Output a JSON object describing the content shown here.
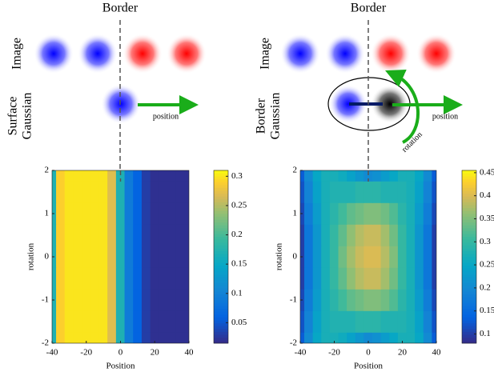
{
  "chart_data": [
    {
      "type": "heatmap",
      "title": "Border",
      "xlabel": "Position",
      "ylabel": "rotation",
      "row_labels": [
        "Image",
        [
          "Surface",
          "Gaussian"
        ]
      ],
      "arrow_label": "position",
      "xlim": [
        -40,
        40
      ],
      "ylim": [
        -2,
        2
      ],
      "xticks": [
        -40,
        -20,
        0,
        20,
        40
      ],
      "yticks": [
        -2,
        -1,
        0,
        1,
        2
      ],
      "clim": [
        0.015,
        0.31
      ],
      "cticks": [
        0.05,
        0.1,
        0.15,
        0.2,
        0.25,
        0.3
      ],
      "x": [
        -40,
        -35,
        -30,
        -25,
        -20,
        -15,
        -10,
        -5,
        0,
        5,
        10,
        15,
        20,
        25,
        30,
        35,
        40
      ],
      "y": [
        -2,
        -1.5,
        -1,
        -0.5,
        0,
        0.5,
        1,
        1.5,
        2
      ],
      "z": [
        [
          0.17,
          0.29,
          0.3,
          0.3,
          0.3,
          0.3,
          0.3,
          0.27,
          0.17,
          0.09,
          0.06,
          0.03,
          0.02,
          0.02,
          0.02,
          0.02,
          0.02
        ],
        [
          0.17,
          0.29,
          0.3,
          0.3,
          0.3,
          0.3,
          0.3,
          0.27,
          0.17,
          0.09,
          0.06,
          0.03,
          0.02,
          0.02,
          0.02,
          0.02,
          0.02
        ],
        [
          0.17,
          0.29,
          0.3,
          0.3,
          0.3,
          0.3,
          0.3,
          0.27,
          0.17,
          0.09,
          0.06,
          0.03,
          0.02,
          0.02,
          0.02,
          0.02,
          0.02
        ],
        [
          0.17,
          0.29,
          0.3,
          0.3,
          0.3,
          0.3,
          0.3,
          0.27,
          0.17,
          0.09,
          0.06,
          0.03,
          0.02,
          0.02,
          0.02,
          0.02,
          0.02
        ],
        [
          0.17,
          0.29,
          0.3,
          0.3,
          0.3,
          0.3,
          0.3,
          0.27,
          0.17,
          0.09,
          0.06,
          0.03,
          0.02,
          0.02,
          0.02,
          0.02,
          0.02
        ],
        [
          0.17,
          0.29,
          0.3,
          0.3,
          0.3,
          0.3,
          0.3,
          0.27,
          0.17,
          0.09,
          0.06,
          0.03,
          0.02,
          0.02,
          0.02,
          0.02,
          0.02
        ],
        [
          0.17,
          0.29,
          0.3,
          0.3,
          0.3,
          0.3,
          0.3,
          0.27,
          0.17,
          0.09,
          0.06,
          0.03,
          0.02,
          0.02,
          0.02,
          0.02,
          0.02
        ],
        [
          0.17,
          0.29,
          0.3,
          0.3,
          0.3,
          0.3,
          0.3,
          0.27,
          0.17,
          0.09,
          0.06,
          0.03,
          0.02,
          0.02,
          0.02,
          0.02,
          0.02
        ],
        [
          0.17,
          0.29,
          0.3,
          0.3,
          0.3,
          0.3,
          0.3,
          0.27,
          0.17,
          0.09,
          0.06,
          0.03,
          0.02,
          0.02,
          0.02,
          0.02,
          0.02
        ]
      ]
    },
    {
      "type": "heatmap",
      "title": "Border",
      "xlabel": "Position",
      "ylabel": "rotation",
      "row_labels": [
        "Image",
        [
          "Border",
          "Gaussian"
        ]
      ],
      "arrow_label": "position",
      "rotation_label": "rotation",
      "xlim": [
        -40,
        40
      ],
      "ylim": [
        -2,
        2
      ],
      "xticks": [
        -40,
        -20,
        0,
        20,
        40
      ],
      "yticks": [
        -2,
        -1,
        0,
        1,
        2
      ],
      "clim": [
        0.08,
        0.455
      ],
      "cticks": [
        0.1,
        0.15,
        0.2,
        0.25,
        0.3,
        0.35,
        0.4,
        0.45
      ],
      "x": [
        -40,
        -35,
        -30,
        -25,
        -20,
        -15,
        -10,
        -5,
        0,
        5,
        10,
        15,
        20,
        25,
        30,
        35,
        40
      ],
      "y": [
        -2,
        -1.5,
        -1,
        -0.5,
        0,
        0.5,
        1,
        1.5,
        2
      ],
      "z": [
        [
          0.13,
          0.2,
          0.25,
          0.27,
          0.27,
          0.26,
          0.24,
          0.22,
          0.2,
          0.21,
          0.23,
          0.25,
          0.27,
          0.27,
          0.25,
          0.2,
          0.13
        ],
        [
          0.12,
          0.19,
          0.24,
          0.27,
          0.28,
          0.28,
          0.28,
          0.29,
          0.29,
          0.29,
          0.28,
          0.28,
          0.28,
          0.27,
          0.24,
          0.19,
          0.12
        ],
        [
          0.11,
          0.18,
          0.23,
          0.27,
          0.29,
          0.31,
          0.33,
          0.34,
          0.35,
          0.35,
          0.34,
          0.32,
          0.29,
          0.27,
          0.23,
          0.18,
          0.11
        ],
        [
          0.1,
          0.17,
          0.22,
          0.27,
          0.3,
          0.33,
          0.36,
          0.38,
          0.39,
          0.39,
          0.37,
          0.34,
          0.3,
          0.27,
          0.22,
          0.17,
          0.1
        ],
        [
          0.1,
          0.17,
          0.22,
          0.27,
          0.3,
          0.34,
          0.37,
          0.39,
          0.4,
          0.4,
          0.38,
          0.35,
          0.3,
          0.27,
          0.22,
          0.17,
          0.1
        ],
        [
          0.1,
          0.17,
          0.22,
          0.27,
          0.3,
          0.33,
          0.36,
          0.38,
          0.39,
          0.39,
          0.37,
          0.34,
          0.3,
          0.27,
          0.22,
          0.17,
          0.1
        ],
        [
          0.11,
          0.18,
          0.23,
          0.27,
          0.29,
          0.31,
          0.33,
          0.34,
          0.35,
          0.35,
          0.34,
          0.32,
          0.29,
          0.27,
          0.23,
          0.18,
          0.11
        ],
        [
          0.12,
          0.19,
          0.24,
          0.27,
          0.28,
          0.28,
          0.28,
          0.29,
          0.29,
          0.29,
          0.28,
          0.28,
          0.28,
          0.27,
          0.24,
          0.19,
          0.12
        ],
        [
          0.13,
          0.2,
          0.25,
          0.27,
          0.27,
          0.26,
          0.24,
          0.22,
          0.2,
          0.21,
          0.23,
          0.25,
          0.27,
          0.27,
          0.25,
          0.2,
          0.13
        ]
      ]
    }
  ]
}
